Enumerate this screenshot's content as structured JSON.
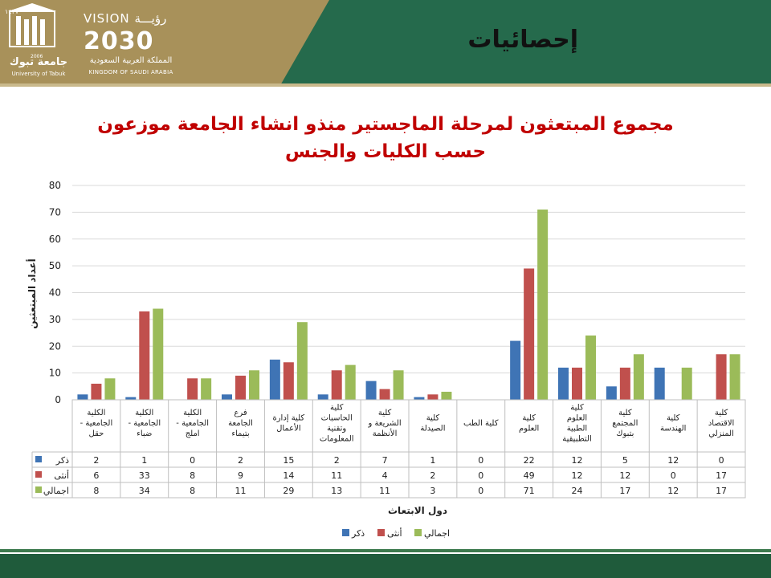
{
  "header": {
    "slide_title": "إحصائيات",
    "university_name_ar": "جامعة تبوك",
    "university_name_en": "University of Tabuk",
    "university_year_hijri": "١٤٢٧",
    "university_year": "2006",
    "vision_label": "VISION رؤيـــة",
    "vision_year": "2030",
    "kingdom_ar": "المملكة العربية السعودية",
    "kingdom_en": "KINGDOM OF SAUDI ARABIA"
  },
  "colors": {
    "header_green": "#256a4c",
    "header_gold": "#a8915a",
    "footer_green": "#1f5b3b",
    "title_red": "#c00000",
    "male": "#3f74b5",
    "female": "#c0504d",
    "total": "#9bbb59"
  },
  "chart_data": {
    "type": "bar",
    "title": "مجموع المبتعثون لمرحلة الماجستير منذو انشاء الجامعة موزعون حسب الكليات والجنس",
    "ylabel": "أعداد المبتعثين",
    "xlabel": "دول الابتعاث",
    "ylim": [
      0,
      80
    ],
    "yticks": [
      "0",
      "10",
      "20",
      "30",
      "40",
      "50",
      "60",
      "70",
      "80"
    ],
    "grid": true,
    "legend_position": "bottom",
    "categories": [
      "الكلية الجامعية - حقل",
      "الكلية الجامعية - ضباء",
      "الكلية الجامعية - املج",
      "فرع الجامعة بتيماء",
      "كلية إدارة الأعمال",
      "كلية الحاسبات وتقنية المعلومات",
      "كلية الشريعة و الأنظمة",
      "كلية الصيدلة",
      "كلية الطب",
      "كلية العلوم",
      "كلية العلوم الطبية التطبيقية",
      "كلية المجتمع بتبوك",
      "كلية الهندسة",
      "كلية الاقتصاد المنزلي"
    ],
    "series": [
      {
        "name": "ذكر",
        "values": [
          2,
          1,
          0,
          2,
          15,
          2,
          7,
          1,
          0,
          22,
          12,
          5,
          12,
          0
        ]
      },
      {
        "name": "أنثى",
        "values": [
          6,
          33,
          8,
          9,
          14,
          11,
          4,
          2,
          0,
          49,
          12,
          12,
          0,
          17
        ]
      },
      {
        "name": "اجمالي",
        "values": [
          8,
          34,
          8,
          11,
          29,
          13,
          11,
          3,
          0,
          71,
          24,
          17,
          12,
          17
        ]
      }
    ]
  }
}
